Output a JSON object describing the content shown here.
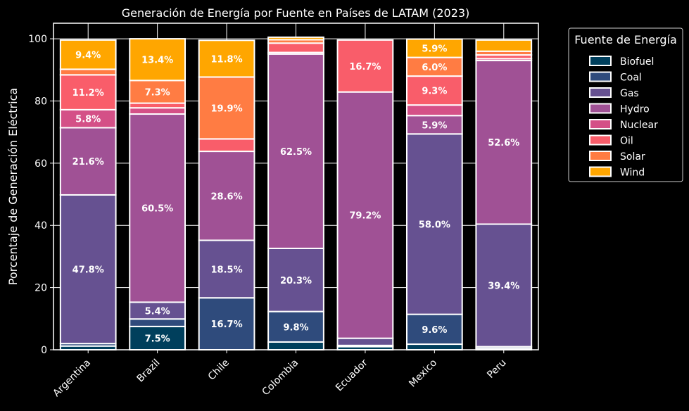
{
  "chart_data": {
    "type": "bar",
    "stacked": true,
    "title": "Generación de Energía por Fuente en Países de LATAM (2023)",
    "xlabel": "",
    "ylabel": "Porcentaje de Generación Eléctrica",
    "ylim": [
      0,
      105
    ],
    "yticks": [
      0,
      20,
      40,
      60,
      80,
      100
    ],
    "grid": true,
    "legend_title": "Fuente de Energía",
    "legend_position": "outside-top-right",
    "categories": [
      "Argentina",
      "Brazil",
      "Chile",
      "Colombia",
      "Ecuador",
      "Mexico",
      "Peru"
    ],
    "series": [
      {
        "name": "Biofuel",
        "color": "#003f5c",
        "values": [
          1.2,
          7.5,
          0.0,
          2.5,
          1.0,
          1.8,
          0.5
        ]
      },
      {
        "name": "Coal",
        "color": "#2f4b7c",
        "values": [
          0.8,
          2.4,
          16.7,
          9.8,
          0.4,
          9.6,
          0.5
        ]
      },
      {
        "name": "Gas",
        "color": "#665191",
        "values": [
          47.8,
          5.4,
          18.5,
          20.3,
          2.3,
          58.0,
          39.4
        ]
      },
      {
        "name": "Hydro",
        "color": "#a05195",
        "values": [
          21.6,
          60.5,
          28.6,
          62.5,
          79.2,
          5.9,
          52.6
        ]
      },
      {
        "name": "Nuclear",
        "color": "#d45087",
        "values": [
          5.8,
          2.0,
          0.0,
          0.5,
          0.0,
          3.4,
          0.6
        ]
      },
      {
        "name": "Oil",
        "color": "#f95d6a",
        "values": [
          11.2,
          1.5,
          4.0,
          3.0,
          16.7,
          9.3,
          1.2
        ]
      },
      {
        "name": "Solar",
        "color": "#ff7c43",
        "values": [
          1.8,
          7.3,
          19.9,
          1.1,
          0.0,
          6.0,
          1.2
        ]
      },
      {
        "name": "Wind",
        "color": "#ffa600",
        "values": [
          9.4,
          13.4,
          11.8,
          0.8,
          0.0,
          5.9,
          3.6
        ]
      }
    ],
    "label_threshold": 5
  }
}
